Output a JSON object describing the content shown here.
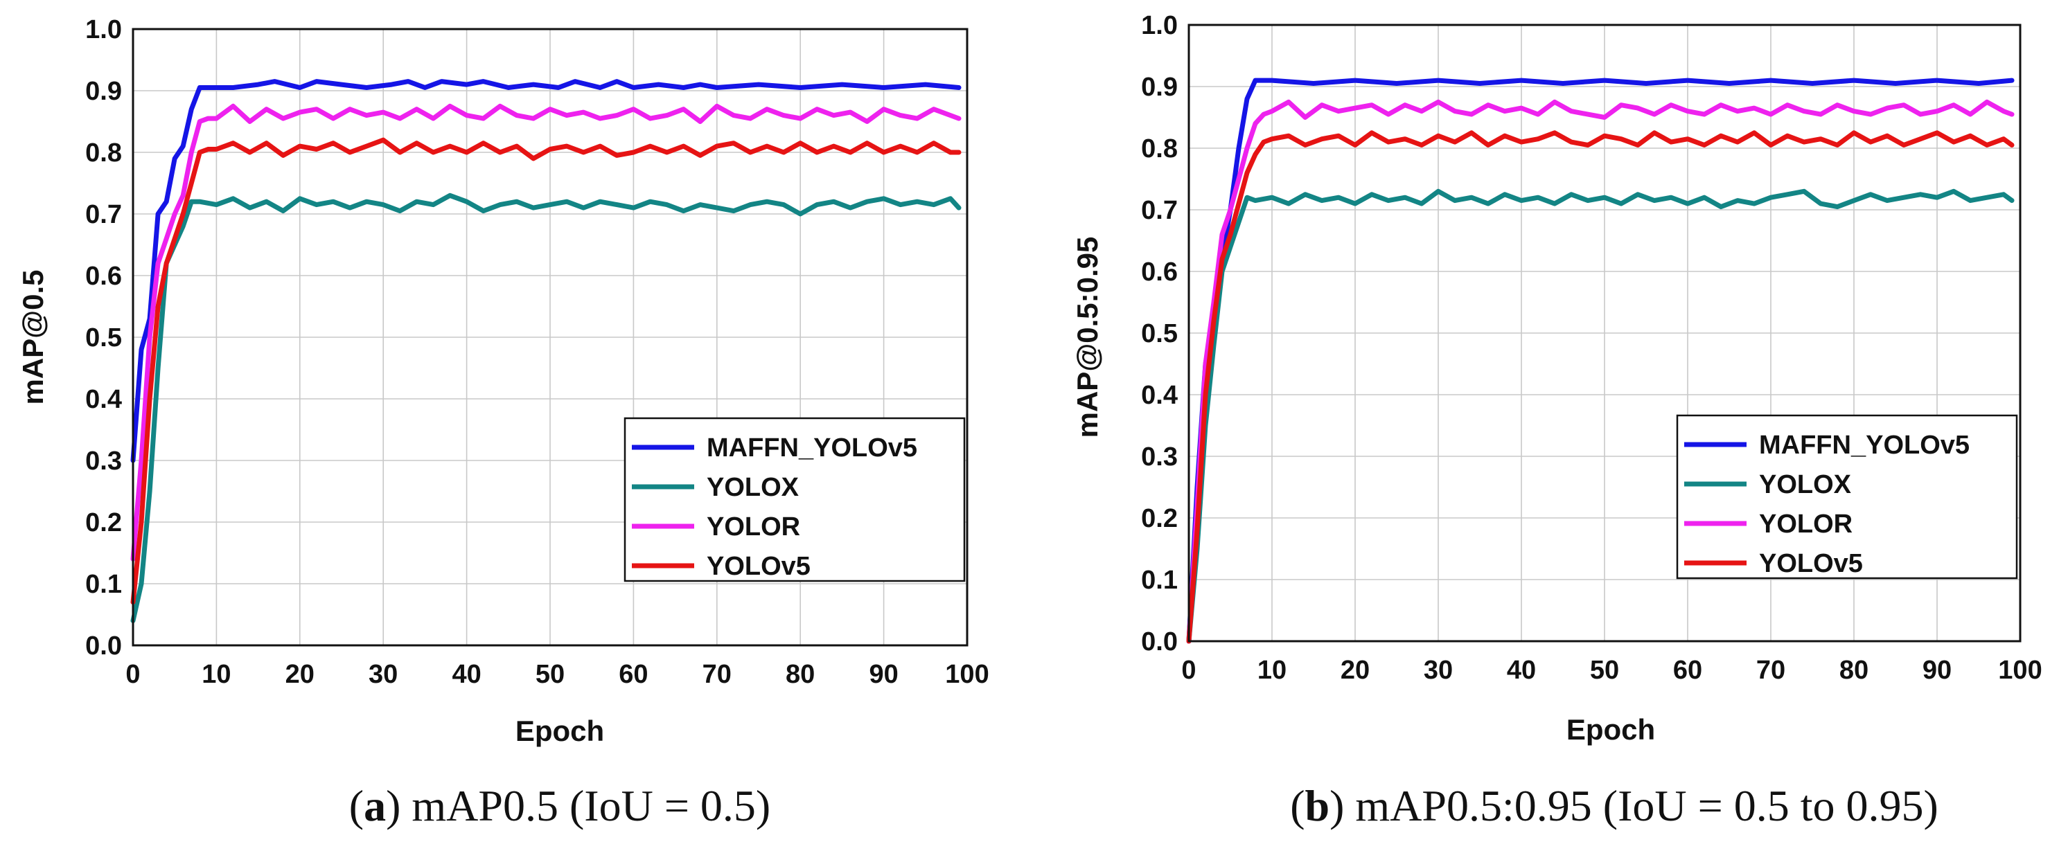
{
  "chart_data": [
    {
      "type": "line",
      "panel_letter": "a",
      "caption": " mAP0.5 (IoU = 0.5)",
      "xlabel": "Epoch",
      "ylabel": "mAP@0.5",
      "xlim": [
        0,
        100
      ],
      "ylim": [
        0,
        1
      ],
      "xticks": [
        "0",
        "10",
        "20",
        "30",
        "40",
        "50",
        "60",
        "70",
        "80",
        "90",
        "100"
      ],
      "yticks": [
        "0.0",
        "0.1",
        "0.2",
        "0.3",
        "0.4",
        "0.5",
        "0.6",
        "0.7",
        "0.8",
        "0.9",
        "1.0"
      ],
      "grid": true,
      "legend_position": "bottom-right",
      "series": [
        {
          "name": "MAFFN_YOLOv5",
          "color": "#1515e6",
          "x": [
            0,
            1,
            2,
            3,
            4,
            5,
            6,
            7,
            8,
            10,
            12,
            15,
            17,
            20,
            22,
            25,
            28,
            31,
            33,
            35,
            37,
            40,
            42,
            45,
            48,
            51,
            53,
            56,
            58,
            60,
            63,
            66,
            68,
            70,
            75,
            80,
            85,
            90,
            95,
            99
          ],
          "y": [
            0.3,
            0.48,
            0.53,
            0.7,
            0.72,
            0.79,
            0.81,
            0.87,
            0.905,
            0.905,
            0.905,
            0.91,
            0.915,
            0.905,
            0.915,
            0.91,
            0.905,
            0.91,
            0.915,
            0.905,
            0.915,
            0.91,
            0.915,
            0.905,
            0.91,
            0.905,
            0.915,
            0.905,
            0.915,
            0.905,
            0.91,
            0.905,
            0.91,
            0.905,
            0.91,
            0.905,
            0.91,
            0.905,
            0.91,
            0.905
          ]
        },
        {
          "name": "YOLOX",
          "color": "#138585",
          "x": [
            0,
            1,
            2,
            3,
            4,
            5,
            6,
            7,
            8,
            10,
            12,
            14,
            16,
            18,
            20,
            22,
            24,
            26,
            28,
            30,
            32,
            34,
            36,
            38,
            40,
            42,
            44,
            46,
            48,
            50,
            52,
            54,
            56,
            58,
            60,
            62,
            64,
            66,
            68,
            70,
            72,
            74,
            76,
            78,
            80,
            82,
            84,
            86,
            88,
            90,
            92,
            94,
            96,
            98,
            99
          ],
          "y": [
            0.04,
            0.1,
            0.25,
            0.45,
            0.62,
            0.65,
            0.68,
            0.72,
            0.72,
            0.715,
            0.725,
            0.71,
            0.72,
            0.705,
            0.725,
            0.715,
            0.72,
            0.71,
            0.72,
            0.715,
            0.705,
            0.72,
            0.715,
            0.73,
            0.72,
            0.705,
            0.715,
            0.72,
            0.71,
            0.715,
            0.72,
            0.71,
            0.72,
            0.715,
            0.71,
            0.72,
            0.715,
            0.705,
            0.715,
            0.71,
            0.705,
            0.715,
            0.72,
            0.715,
            0.7,
            0.715,
            0.72,
            0.71,
            0.72,
            0.725,
            0.715,
            0.72,
            0.715,
            0.725,
            0.71
          ]
        },
        {
          "name": "YOLOR",
          "color": "#ee22ee",
          "x": [
            0,
            1,
            2,
            3,
            4,
            5,
            6,
            7,
            8,
            9,
            10,
            12,
            14,
            16,
            18,
            20,
            22,
            24,
            26,
            28,
            30,
            32,
            34,
            36,
            38,
            40,
            42,
            44,
            46,
            48,
            50,
            52,
            54,
            56,
            58,
            60,
            62,
            64,
            66,
            68,
            70,
            72,
            74,
            76,
            78,
            80,
            82,
            84,
            86,
            88,
            90,
            92,
            94,
            96,
            98,
            99
          ],
          "y": [
            0.14,
            0.3,
            0.5,
            0.62,
            0.66,
            0.7,
            0.73,
            0.8,
            0.85,
            0.855,
            0.855,
            0.875,
            0.85,
            0.87,
            0.855,
            0.865,
            0.87,
            0.855,
            0.87,
            0.86,
            0.865,
            0.855,
            0.87,
            0.855,
            0.875,
            0.86,
            0.855,
            0.875,
            0.86,
            0.855,
            0.87,
            0.86,
            0.865,
            0.855,
            0.86,
            0.87,
            0.855,
            0.86,
            0.87,
            0.85,
            0.875,
            0.86,
            0.855,
            0.87,
            0.86,
            0.855,
            0.87,
            0.86,
            0.865,
            0.85,
            0.87,
            0.86,
            0.855,
            0.87,
            0.86,
            0.855
          ]
        },
        {
          "name": "YOLOv5",
          "color": "#e61414",
          "x": [
            0,
            1,
            2,
            3,
            4,
            5,
            6,
            7,
            8,
            9,
            10,
            12,
            14,
            16,
            18,
            20,
            22,
            24,
            26,
            28,
            30,
            32,
            34,
            36,
            38,
            40,
            42,
            44,
            46,
            48,
            50,
            52,
            54,
            56,
            58,
            60,
            62,
            64,
            66,
            68,
            70,
            72,
            74,
            76,
            78,
            80,
            82,
            84,
            86,
            88,
            90,
            92,
            94,
            96,
            98,
            99
          ],
          "y": [
            0.07,
            0.2,
            0.4,
            0.55,
            0.62,
            0.66,
            0.7,
            0.75,
            0.8,
            0.805,
            0.805,
            0.815,
            0.8,
            0.815,
            0.795,
            0.81,
            0.805,
            0.815,
            0.8,
            0.81,
            0.82,
            0.8,
            0.815,
            0.8,
            0.81,
            0.8,
            0.815,
            0.8,
            0.81,
            0.79,
            0.805,
            0.81,
            0.8,
            0.81,
            0.795,
            0.8,
            0.81,
            0.8,
            0.81,
            0.795,
            0.81,
            0.815,
            0.8,
            0.81,
            0.8,
            0.815,
            0.8,
            0.81,
            0.8,
            0.815,
            0.8,
            0.81,
            0.8,
            0.815,
            0.8,
            0.8
          ]
        }
      ]
    },
    {
      "type": "line",
      "panel_letter": "b",
      "caption": " mAP0.5:0.95 (IoU = 0.5 to 0.95)",
      "xlabel": "Epoch",
      "ylabel": "mAP@0.5:0.95",
      "xlim": [
        0,
        100
      ],
      "ylim": [
        0,
        1
      ],
      "xticks": [
        "0",
        "10",
        "20",
        "30",
        "40",
        "50",
        "60",
        "70",
        "80",
        "90",
        "100"
      ],
      "yticks": [
        "0.0",
        "0.1",
        "0.2",
        "0.3",
        "0.4",
        "0.5",
        "0.6",
        "0.7",
        "0.8",
        "0.9",
        "1.0"
      ],
      "grid": true,
      "legend_position": "bottom-right",
      "series": [
        {
          "name": "MAFFN_YOLOv5",
          "color": "#1515e6",
          "x": [
            0,
            1,
            2,
            3,
            4,
            5,
            6,
            7,
            8,
            10,
            15,
            20,
            25,
            30,
            35,
            40,
            45,
            50,
            55,
            60,
            65,
            70,
            75,
            80,
            85,
            90,
            95,
            99
          ],
          "y": [
            0.0,
            0.25,
            0.45,
            0.52,
            0.62,
            0.7,
            0.8,
            0.88,
            0.91,
            0.91,
            0.905,
            0.91,
            0.905,
            0.91,
            0.905,
            0.91,
            0.905,
            0.91,
            0.905,
            0.91,
            0.905,
            0.91,
            0.905,
            0.91,
            0.905,
            0.91,
            0.905,
            0.91
          ]
        },
        {
          "name": "YOLOX",
          "color": "#138585",
          "x": [
            0,
            1,
            2,
            3,
            4,
            5,
            6,
            7,
            8,
            10,
            12,
            14,
            16,
            18,
            20,
            22,
            24,
            26,
            28,
            30,
            32,
            34,
            36,
            38,
            40,
            42,
            44,
            46,
            48,
            50,
            52,
            54,
            56,
            58,
            60,
            62,
            64,
            66,
            68,
            70,
            72,
            74,
            76,
            78,
            80,
            82,
            84,
            86,
            88,
            90,
            92,
            94,
            96,
            98,
            99
          ],
          "y": [
            0.0,
            0.15,
            0.35,
            0.48,
            0.6,
            0.64,
            0.68,
            0.72,
            0.715,
            0.72,
            0.71,
            0.725,
            0.715,
            0.72,
            0.71,
            0.725,
            0.715,
            0.72,
            0.71,
            0.73,
            0.715,
            0.72,
            0.71,
            0.725,
            0.715,
            0.72,
            0.71,
            0.725,
            0.715,
            0.72,
            0.71,
            0.725,
            0.715,
            0.72,
            0.71,
            0.72,
            0.705,
            0.715,
            0.71,
            0.72,
            0.725,
            0.73,
            0.71,
            0.705,
            0.715,
            0.725,
            0.715,
            0.72,
            0.725,
            0.72,
            0.73,
            0.715,
            0.72,
            0.725,
            0.715
          ]
        },
        {
          "name": "YOLOR",
          "color": "#ee22ee",
          "x": [
            0,
            1,
            2,
            3,
            4,
            5,
            6,
            7,
            8,
            9,
            10,
            12,
            14,
            16,
            18,
            20,
            22,
            24,
            26,
            28,
            30,
            32,
            34,
            36,
            38,
            40,
            42,
            44,
            46,
            48,
            50,
            52,
            54,
            56,
            58,
            60,
            62,
            64,
            66,
            68,
            70,
            72,
            74,
            76,
            78,
            80,
            82,
            84,
            86,
            88,
            90,
            92,
            94,
            96,
            98,
            99
          ],
          "y": [
            0.0,
            0.22,
            0.45,
            0.55,
            0.66,
            0.7,
            0.75,
            0.8,
            0.84,
            0.855,
            0.86,
            0.875,
            0.85,
            0.87,
            0.86,
            0.865,
            0.87,
            0.855,
            0.87,
            0.86,
            0.875,
            0.86,
            0.855,
            0.87,
            0.86,
            0.865,
            0.855,
            0.875,
            0.86,
            0.855,
            0.85,
            0.87,
            0.865,
            0.855,
            0.87,
            0.86,
            0.855,
            0.87,
            0.86,
            0.865,
            0.855,
            0.87,
            0.86,
            0.855,
            0.87,
            0.86,
            0.855,
            0.865,
            0.87,
            0.855,
            0.86,
            0.87,
            0.855,
            0.875,
            0.86,
            0.855
          ]
        },
        {
          "name": "YOLOv5",
          "color": "#e61414",
          "x": [
            0,
            1,
            2,
            3,
            4,
            5,
            6,
            7,
            8,
            9,
            10,
            12,
            14,
            16,
            18,
            20,
            22,
            24,
            26,
            28,
            30,
            32,
            34,
            36,
            38,
            40,
            42,
            44,
            46,
            48,
            50,
            52,
            54,
            56,
            58,
            60,
            62,
            64,
            66,
            68,
            70,
            72,
            74,
            76,
            78,
            80,
            82,
            84,
            86,
            88,
            90,
            92,
            94,
            96,
            98,
            99
          ],
          "y": [
            0.0,
            0.18,
            0.4,
            0.52,
            0.62,
            0.66,
            0.71,
            0.76,
            0.79,
            0.81,
            0.815,
            0.82,
            0.805,
            0.815,
            0.82,
            0.805,
            0.825,
            0.81,
            0.815,
            0.805,
            0.82,
            0.81,
            0.825,
            0.805,
            0.82,
            0.81,
            0.815,
            0.825,
            0.81,
            0.805,
            0.82,
            0.815,
            0.805,
            0.825,
            0.81,
            0.815,
            0.805,
            0.82,
            0.81,
            0.825,
            0.805,
            0.82,
            0.81,
            0.815,
            0.805,
            0.825,
            0.81,
            0.82,
            0.805,
            0.815,
            0.825,
            0.81,
            0.82,
            0.805,
            0.815,
            0.805
          ]
        }
      ]
    }
  ]
}
